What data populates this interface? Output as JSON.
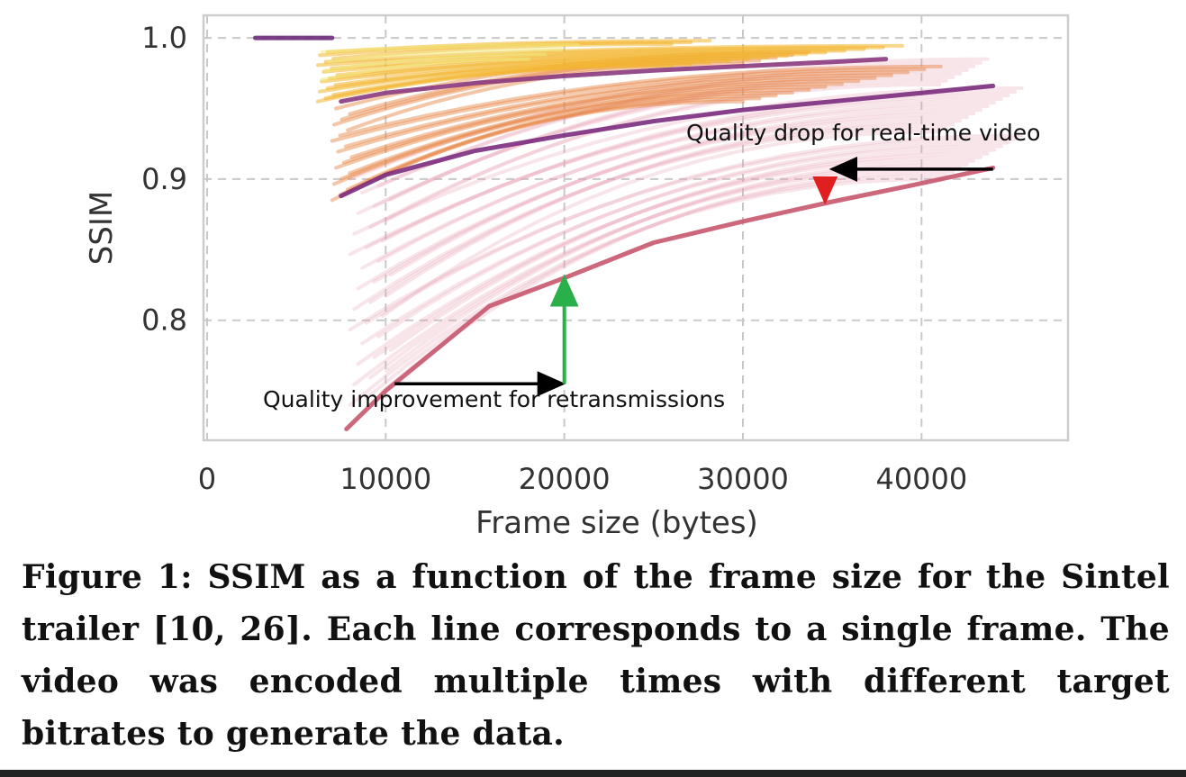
{
  "chart_data": {
    "type": "line",
    "xlabel": "Frame size (bytes)",
    "ylabel": "SSIM",
    "xlim": [
      -200,
      48200
    ],
    "ylim": [
      0.715,
      1.016
    ],
    "xticks": [
      0,
      10000,
      20000,
      30000,
      40000
    ],
    "xtick_labels": [
      "0",
      "10000",
      "20000",
      "30000",
      "40000"
    ],
    "yticks": [
      0.8,
      0.9,
      1.0
    ],
    "ytick_labels": [
      "0.8",
      "0.9",
      "1.0"
    ],
    "grid": true,
    "grid_style": "dashed",
    "frame_families": [
      {
        "color": "#e7a3b4",
        "opacity": 0.28,
        "count": 34,
        "x_start": [
          8000,
          10500
        ],
        "x_end": [
          41000,
          46000
        ],
        "y_start": [
          0.74,
          0.9
        ],
        "y_end": [
          0.9,
          0.985
        ]
      },
      {
        "color": "#e6813f",
        "opacity": 0.45,
        "count": 18,
        "x_start": [
          7000,
          8200
        ],
        "x_end": [
          30000,
          42000
        ],
        "y_start": [
          0.885,
          0.95
        ],
        "y_end": [
          0.955,
          0.99
        ]
      },
      {
        "color": "#f2b52c",
        "opacity": 0.55,
        "count": 16,
        "x_start": [
          6200,
          7400
        ],
        "x_end": [
          26000,
          40000
        ],
        "y_start": [
          0.955,
          0.99
        ],
        "y_end": [
          0.98,
          0.998
        ]
      },
      {
        "color": "#f1e87a",
        "opacity": 0.55,
        "count": 4,
        "x_start": [
          6400,
          7000
        ],
        "x_end": [
          18000,
          30000
        ],
        "y_start": [
          0.97,
          0.99
        ],
        "y_end": [
          0.985,
          0.995
        ]
      }
    ],
    "series": [
      {
        "x": [
          2700,
          7000
        ],
        "y": [
          1.0,
          1.0
        ],
        "color": "#6b2a7a"
      },
      {
        "x": [
          7500,
          10000,
          15000,
          20000,
          25000,
          30000,
          35000,
          40000,
          44000
        ],
        "y": [
          0.888,
          0.903,
          0.92,
          0.931,
          0.941,
          0.949,
          0.955,
          0.961,
          0.966
        ],
        "color": "#7b2c7e"
      },
      {
        "x": [
          7500,
          10000,
          15000,
          20000,
          25000,
          30000,
          35000,
          38000
        ],
        "y": [
          0.955,
          0.961,
          0.968,
          0.973,
          0.977,
          0.98,
          0.983,
          0.985
        ],
        "color": "#8a3a80"
      },
      {
        "x": [
          7800,
          10000,
          15800,
          20000,
          25000,
          30000,
          35000,
          40000,
          44000
        ],
        "y": [
          0.723,
          0.75,
          0.81,
          0.83,
          0.855,
          0.87,
          0.884,
          0.897,
          0.908
        ],
        "color": "#c8566e"
      }
    ],
    "annotations": [
      {
        "text": "Quality drop for real-time video",
        "arrow_x": [
          44000,
          35000
        ],
        "arrow_y": [
          0.907,
          0.907
        ],
        "drop_y": [
          0.9,
          0.884
        ],
        "drop_x": 34600,
        "arrow_color": "#000000",
        "drop_color": "#e02020"
      },
      {
        "text": "Quality improvement for retransmissions",
        "arrow_x": [
          10500,
          20000
        ],
        "arrow_y": [
          0.755,
          0.755
        ],
        "rise_y": [
          0.755,
          0.83
        ],
        "rise_x": 20000,
        "arrow_color": "#000000",
        "rise_color": "#2ab04a"
      }
    ]
  },
  "caption": "Figure 1: SSIM as a function of the frame size for the Sintel trailer [10, 26]. Each line corresponds to a single frame. The video was encoded multiple times with different target bitrates to generate the data."
}
